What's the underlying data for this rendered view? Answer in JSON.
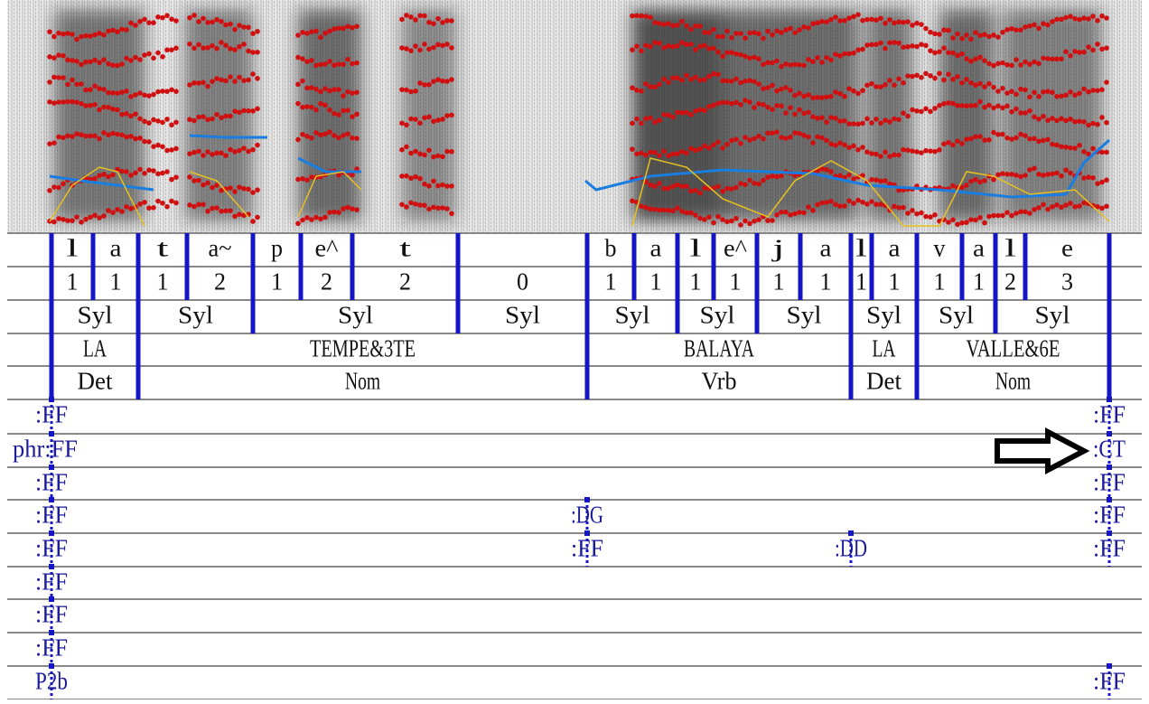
{
  "interval_tiers": [
    [
      "l",
      "a",
      "t",
      "a~",
      "p",
      "e^",
      "t",
      "b",
      "a",
      "l",
      "e^",
      "j",
      "a",
      "l",
      "a",
      "v",
      "a",
      "l",
      "e"
    ],
    [
      "1",
      "1",
      "1",
      "2",
      "1",
      "2",
      "2",
      "0",
      "1",
      "1",
      "1",
      "1",
      "1",
      "1",
      "1",
      "1",
      "1",
      "1",
      "2",
      "3"
    ],
    [
      "Syl",
      "Syl",
      "Syl",
      "Syl",
      "Syl",
      "Syl",
      "Syl",
      "Syl",
      "Syl",
      "Syl"
    ],
    [
      "LA",
      "TEMPE&3TE",
      "BALAYA",
      "LA",
      "VALLE&6E"
    ],
    [
      "Det",
      "Nom",
      "Vrb",
      "Det",
      "Nom"
    ]
  ],
  "point_tiers": [
    [
      ":FF",
      ":FF"
    ],
    [
      "phr:FF",
      ":CT"
    ],
    [
      ":FF",
      ":FF"
    ],
    [
      ":FF",
      ":DG",
      ":FF"
    ],
    [
      ":FF",
      ":FF",
      ":DD",
      ":FF"
    ],
    [
      ":FF"
    ],
    [
      ":FF"
    ],
    [
      ":FF"
    ],
    [
      "P2b",
      ":FF"
    ]
  ]
}
